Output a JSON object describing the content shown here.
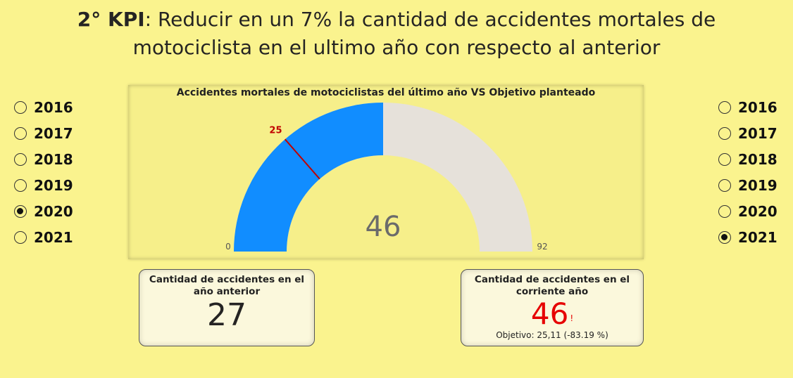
{
  "title": {
    "bold": "2° KPI",
    "line1_rest": ": Reducir en un 7% la cantidad de accidentes mortales de",
    "line2": "motociclista en el ultimo año con respecto al anterior"
  },
  "slicer_left": {
    "items": [
      {
        "label": "2016",
        "selected": false
      },
      {
        "label": "2017",
        "selected": false
      },
      {
        "label": "2018",
        "selected": false
      },
      {
        "label": "2019",
        "selected": false
      },
      {
        "label": "2020",
        "selected": true
      },
      {
        "label": "2021",
        "selected": false
      }
    ]
  },
  "slicer_right": {
    "items": [
      {
        "label": "2016",
        "selected": false
      },
      {
        "label": "2017",
        "selected": false
      },
      {
        "label": "2018",
        "selected": false
      },
      {
        "label": "2019",
        "selected": false
      },
      {
        "label": "2020",
        "selected": false
      },
      {
        "label": "2021",
        "selected": true
      }
    ]
  },
  "gauge": {
    "title": "Accidentes mortales de motociclistas del último año VS Objetivo planteado",
    "min_label": "0",
    "max_label": "92",
    "value_label": "46",
    "target_label": "25",
    "colors": {
      "fill": "#118dff",
      "track": "#e6e1da",
      "target": "#c00000"
    }
  },
  "chart_data": {
    "type": "gauge",
    "title": "Accidentes mortales de motociclistas del último año VS Objetivo planteado",
    "value": 46,
    "min": 0,
    "max": 92,
    "target": 25
  },
  "card_previous": {
    "label": "Cantidad de accidentes en el año anterior",
    "value": "27"
  },
  "card_current": {
    "label": "Cantidad de accidentes en el corriente año",
    "value": "46",
    "alert": "!",
    "goal": "Objetivo: 25,11 (-83.19 %)",
    "value_color": "#e60000"
  }
}
